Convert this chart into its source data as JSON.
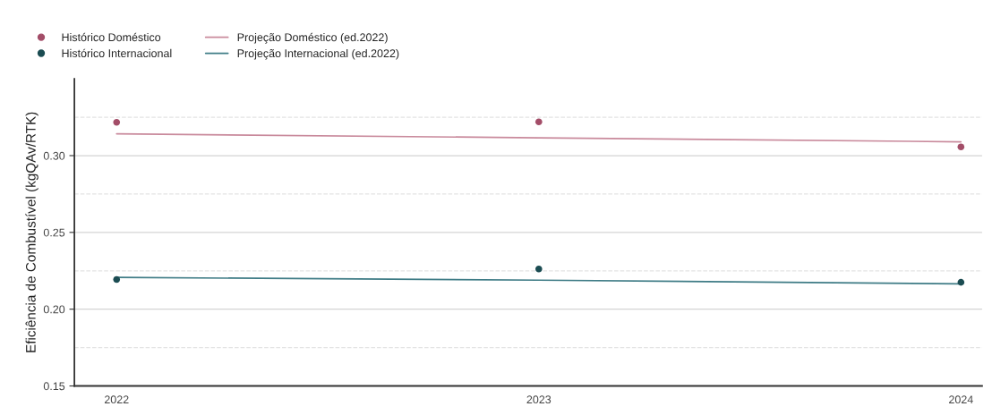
{
  "chart_data": {
    "type": "scatter",
    "ylabel": "Eficiência de Combustível (kgQAv/RTK)",
    "x": [
      2022,
      2023,
      2024
    ],
    "series": [
      {
        "name": "Histórico Doméstico",
        "marker": "circle",
        "color": "#a34d68",
        "values": [
          0.3217,
          0.322,
          0.3057
        ]
      },
      {
        "name": "Histórico Internacional",
        "marker": "circle",
        "color": "#1b4c52",
        "values": [
          0.2193,
          0.2262,
          0.2175
        ]
      },
      {
        "name": "Projeção Doméstico (ed.2022)",
        "type": "line",
        "line_style": "solid",
        "color": "#c98a9c",
        "values": [
          0.3142,
          0.3116,
          0.309
        ]
      },
      {
        "name": "Projeção Internacional (ed.2022)",
        "type": "line",
        "line_style": "solid",
        "color": "#3f7c86",
        "values": [
          0.2207,
          0.2189,
          0.2165
        ]
      }
    ],
    "xlim": [
      2021.9,
      2024.05
    ],
    "xticks": [
      2022,
      2023,
      2024
    ],
    "ylim": [
      0.15,
      0.35
    ],
    "yticks": [
      {
        "value": 0.15,
        "label": "0.15"
      },
      {
        "value": 0.2,
        "label": "0.20"
      },
      {
        "value": 0.25,
        "label": "0.25"
      },
      {
        "value": 0.3,
        "label": "0.30"
      }
    ],
    "ref_lines": [
      {
        "axis": "y",
        "value": 0.175,
        "color": "#e3e3e3",
        "line_style": "dashed"
      },
      {
        "axis": "y",
        "value": 0.225,
        "color": "#e3e3e3",
        "line_style": "dashed"
      },
      {
        "axis": "y",
        "value": 0.275,
        "color": "#e3e3e3",
        "line_style": "dashed"
      },
      {
        "axis": "y",
        "value": 0.325,
        "color": "#e3e3e3",
        "line_style": "dashed"
      }
    ],
    "grid": "y",
    "legend": "top left"
  }
}
